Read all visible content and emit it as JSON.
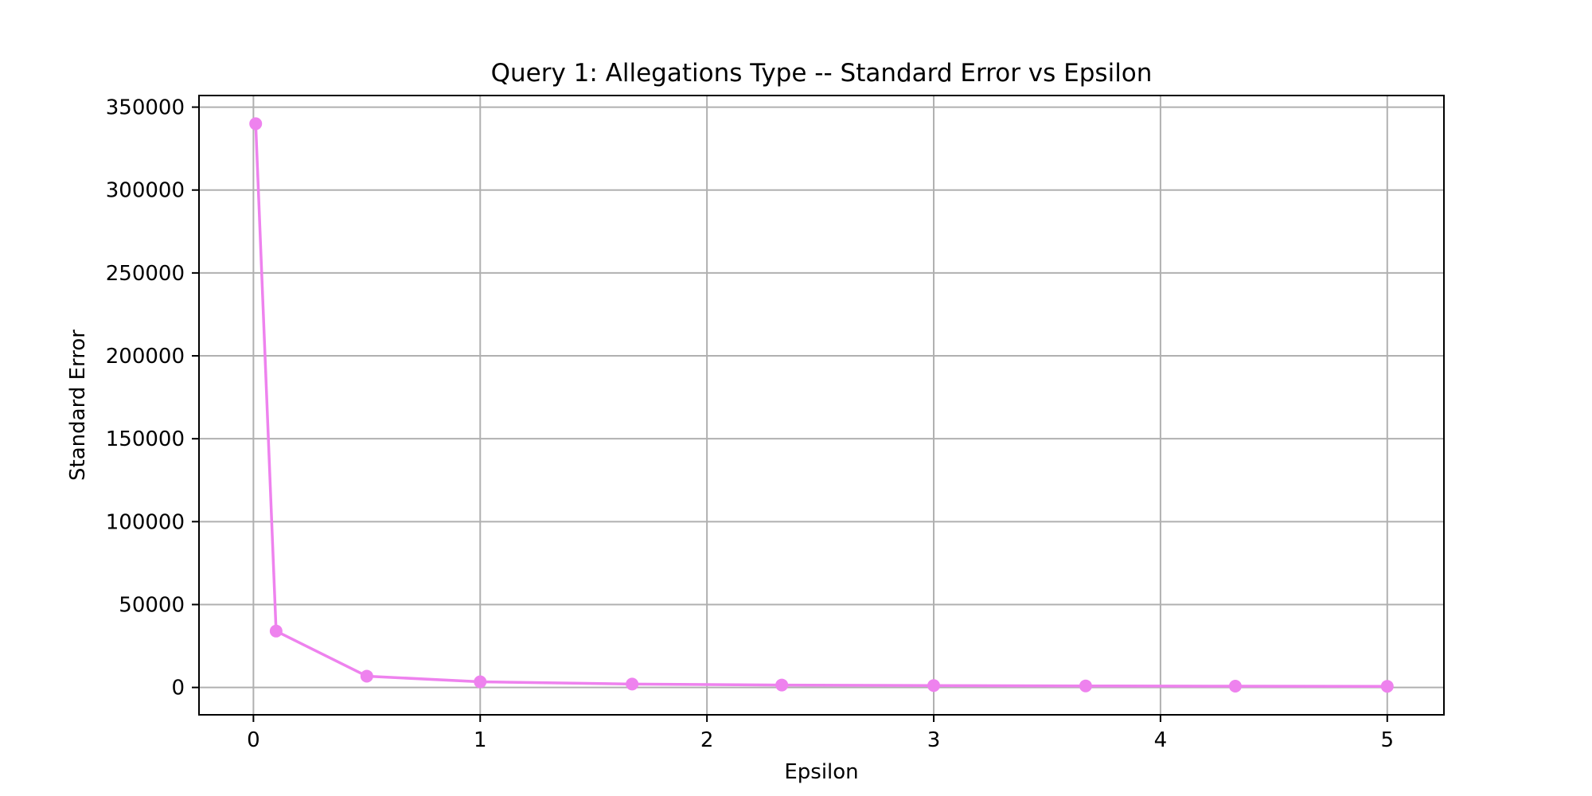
{
  "chart_data": {
    "type": "line",
    "title": "Query 1: Allegations Type -- Standard Error vs Epsilon",
    "xlabel": "Epsilon",
    "ylabel": "Standard Error",
    "xlim": [
      -0.24,
      5.25
    ],
    "ylim": [
      -16500,
      357000
    ],
    "xticks": [
      0,
      1,
      2,
      3,
      4,
      5
    ],
    "yticks": [
      0,
      50000,
      100000,
      150000,
      200000,
      250000,
      300000,
      350000
    ],
    "grid": true,
    "legend": null,
    "series": [
      {
        "color": "#ee82ee",
        "marker": "circle",
        "x": [
          0.01,
          0.1,
          0.5,
          1.0,
          1.67,
          2.33,
          3.0,
          3.67,
          4.33,
          5.0
        ],
        "y": [
          340000,
          34000,
          6800,
          3400,
          2040,
          1460,
          1130,
          930,
          790,
          680
        ]
      }
    ]
  }
}
